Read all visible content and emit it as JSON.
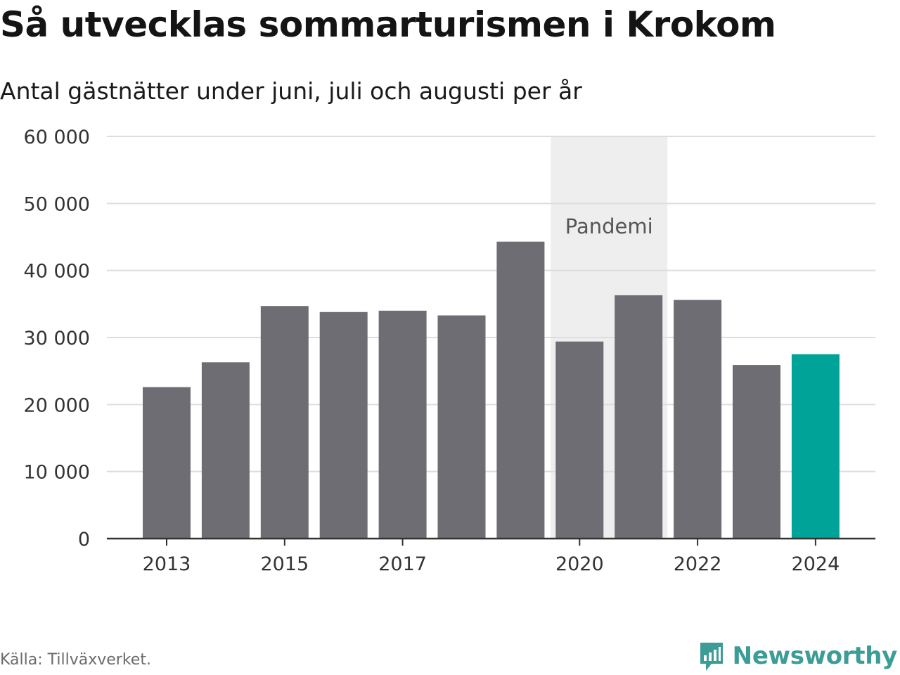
{
  "header": {
    "title": "Så utvecklas sommarturismen i Krokom",
    "subtitle": "Antal gästnätter under juni, juli och augusti per år"
  },
  "footer": {
    "source": "Källa: Tillväxverket.",
    "brand": "Newsworthy",
    "brand_icon": "bar-chart-speech-bubble-icon"
  },
  "chart_data": {
    "type": "bar",
    "categories": [
      "2013",
      "2014",
      "2015",
      "2016",
      "2017",
      "2018",
      "2019",
      "2020",
      "2021",
      "2022",
      "2023",
      "2024"
    ],
    "values": [
      22600,
      26300,
      34700,
      33800,
      34000,
      33300,
      44300,
      29400,
      36300,
      35600,
      25900,
      27500
    ],
    "x_tick_labels": [
      "2013",
      "2015",
      "2017",
      "2020",
      "2022",
      "2024"
    ],
    "y_ticks": [
      0,
      10000,
      20000,
      30000,
      40000,
      50000,
      60000
    ],
    "y_tick_labels": [
      "0",
      "10 000",
      "20 000",
      "30 000",
      "40 000",
      "50 000",
      "60 000"
    ],
    "ylim": [
      0,
      60000
    ],
    "grid": true,
    "highlight_category": "2024",
    "annotation": {
      "label": "Pandemi",
      "from": "2020",
      "to": "2021"
    },
    "colors": {
      "bar": "#6e6d74",
      "highlight": "#00a398",
      "band": "#eeeeee",
      "grid": "#dddddd",
      "axis": "#333333"
    },
    "xlabel": "",
    "ylabel": ""
  }
}
